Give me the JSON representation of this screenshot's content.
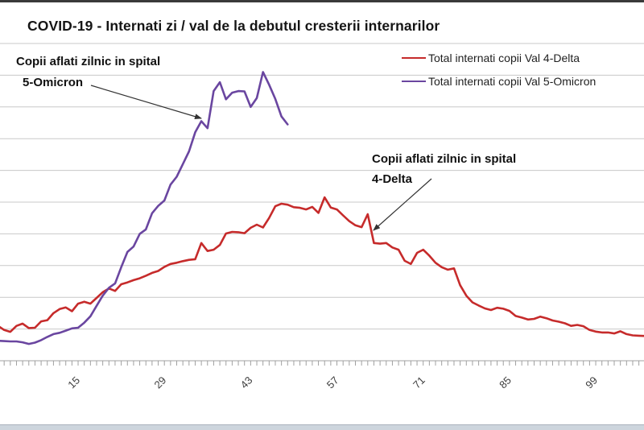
{
  "window": {
    "top_border_color": "#3a3a3a",
    "bottom_bar_color": "#cdd5dd"
  },
  "chart_data": {
    "type": "line",
    "title": "COVID-19 - Internati zi / val de la debutul cresterii internarilor",
    "xlabel": "",
    "ylabel": "",
    "x_axis": {
      "tick_labels": [
        15,
        29,
        43,
        57,
        71,
        85,
        99
      ],
      "minor_tick_every_day": 1,
      "visible_day_range": [
        2,
        107
      ],
      "tick_label_rotation_deg": -45
    },
    "y_axis": {
      "labels_visible": false,
      "ylim": [
        0,
        1000
      ],
      "gridline_step": 100,
      "gridlines": true
    },
    "legend": {
      "position": "top-right"
    },
    "grid_color": "#c8c8c8",
    "axis_color": "#a0a0a0",
    "series": [
      {
        "name": "Total internati copii Val 4-Delta",
        "color": "#c62b2b",
        "day_range": [
          2,
          107
        ],
        "values": [
          110,
          97,
          91,
          110,
          117,
          103,
          104,
          124,
          128,
          150,
          163,
          168,
          156,
          180,
          186,
          180,
          198,
          216,
          228,
          220,
          241,
          247,
          254,
          260,
          268,
          277,
          283,
          296,
          305,
          309,
          314,
          318,
          320,
          371,
          346,
          350,
          365,
          401,
          406,
          405,
          402,
          419,
          429,
          420,
          450,
          487,
          495,
          492,
          484,
          482,
          477,
          485,
          466,
          515,
          483,
          477,
          458,
          440,
          427,
          421,
          462,
          371,
          369,
          371,
          357,
          350,
          315,
          305,
          340,
          350,
          331,
          309,
          295,
          287,
          291,
          238,
          205,
          184,
          174,
          165,
          160,
          167,
          164,
          157,
          141,
          136,
          130,
          132,
          139,
          134,
          127,
          123,
          118,
          110,
          113,
          109,
          97,
          92,
          89,
          89,
          86,
          93,
          84,
          80,
          79,
          78
        ]
      },
      {
        "name": "Total internati copii Val 5-Omicron",
        "color": "#6a46a0",
        "day_range": [
          2,
          49
        ],
        "values": [
          63,
          62,
          61,
          61,
          58,
          53,
          57,
          65,
          75,
          84,
          88,
          95,
          102,
          104,
          120,
          140,
          173,
          205,
          230,
          244,
          295,
          343,
          360,
          400,
          414,
          465,
          488,
          505,
          555,
          580,
          620,
          660,
          720,
          755,
          733,
          850,
          878,
          824,
          845,
          850,
          849,
          800,
          828,
          910,
          870,
          825,
          770,
          745
        ]
      }
    ],
    "annotations": [
      {
        "lines": [
          "Copii aflati zilnic in spital",
          "5-Omicron"
        ],
        "points_to_series": "Total internati copii Val 5-Omicron"
      },
      {
        "lines": [
          "Copii aflati zilnic in spital",
          "4-Delta"
        ],
        "points_to_series": "Total internati copii Val 4-Delta"
      }
    ]
  }
}
